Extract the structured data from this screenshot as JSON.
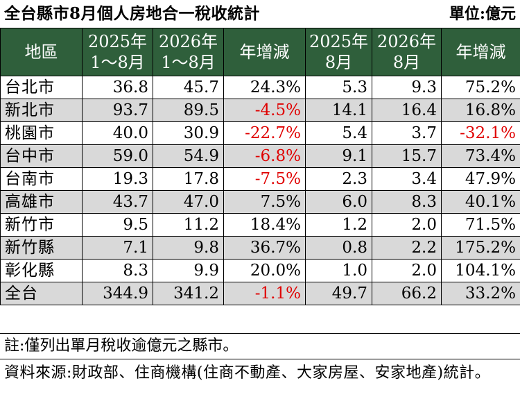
{
  "title": "全台縣市8月個人房地合一稅收統計",
  "unit": "單位:億元",
  "headers": [
    {
      "line1": "地區",
      "line2": ""
    },
    {
      "line1": "2025年",
      "line2": "1～8月"
    },
    {
      "line1": "2026年",
      "line2": "1～8月"
    },
    {
      "line1": "年增減",
      "line2": ""
    },
    {
      "line1": "2025年",
      "line2": "8月"
    },
    {
      "line1": "2026年",
      "line2": "8月"
    },
    {
      "line1": "年增減",
      "line2": ""
    }
  ],
  "rows": [
    {
      "name": "台北市",
      "c1": "36.8",
      "c2": "45.7",
      "c3": "24.3%",
      "c4": "5.3",
      "c5": "9.3",
      "c6": "75.2%"
    },
    {
      "name": "新北市",
      "c1": "93.7",
      "c2": "89.5",
      "c3": "-4.5%",
      "c4": "14.1",
      "c5": "16.4",
      "c6": "16.8%"
    },
    {
      "name": "桃園市",
      "c1": "40.0",
      "c2": "30.9",
      "c3": "-22.7%",
      "c4": "5.4",
      "c5": "3.7",
      "c6": "-32.1%"
    },
    {
      "name": "台中市",
      "c1": "59.0",
      "c2": "54.9",
      "c3": "-6.8%",
      "c4": "9.1",
      "c5": "15.7",
      "c6": "73.4%"
    },
    {
      "name": "台南市",
      "c1": "19.3",
      "c2": "17.8",
      "c3": "-7.5%",
      "c4": "2.3",
      "c5": "3.4",
      "c6": "47.9%"
    },
    {
      "name": "高雄市",
      "c1": "43.7",
      "c2": "47.0",
      "c3": "7.5%",
      "c4": "6.0",
      "c5": "8.3",
      "c6": "40.1%"
    },
    {
      "name": "新竹市",
      "c1": "9.5",
      "c2": "11.2",
      "c3": "18.4%",
      "c4": "1.2",
      "c5": "2.0",
      "c6": "71.5%"
    },
    {
      "name": "新竹縣",
      "c1": "7.1",
      "c2": "9.8",
      "c3": "36.7%",
      "c4": "0.8",
      "c5": "2.2",
      "c6": "175.2%"
    },
    {
      "name": "彰化縣",
      "c1": "8.3",
      "c2": "9.9",
      "c3": "20.0%",
      "c4": "1.0",
      "c5": "2.0",
      "c6": "104.1%"
    },
    {
      "name": "全台",
      "c1": "344.9",
      "c2": "341.2",
      "c3": "-1.1%",
      "c4": "49.7",
      "c5": "66.2",
      "c6": "33.2%"
    }
  ],
  "note": "註:僅列出單月稅收逾億元之縣市。",
  "source": "資料來源:財政部、住商機構(住商不動產、大家房屋、安家地產)統計。",
  "colors": {
    "header_bg": "#2f5f3b",
    "alt_row": "#d9d9d9",
    "negative": "#e00000"
  }
}
